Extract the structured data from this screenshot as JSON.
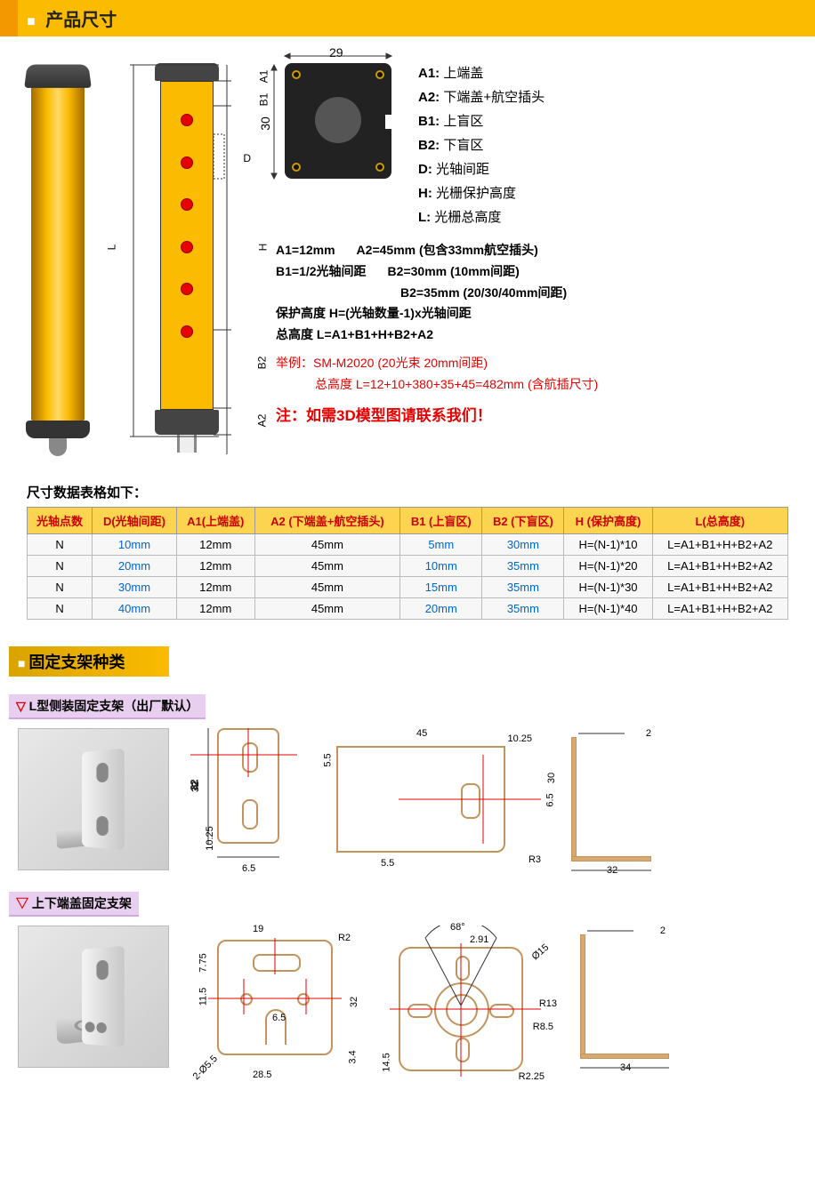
{
  "header1": "产品尺寸",
  "header2": "固定支架种类",
  "schematic_labels": {
    "A1": "A1",
    "B1": "B1",
    "D": "D",
    "H": "H",
    "B2": "B2",
    "A2": "A2",
    "L": "L"
  },
  "topview": {
    "width": "29",
    "height": "30"
  },
  "definitions": [
    {
      "k": "A1:",
      "v": "上端盖"
    },
    {
      "k": "A2:",
      "v": "下端盖+航空插头"
    },
    {
      "k": "B1:",
      "v": "上盲区"
    },
    {
      "k": "B2:",
      "v": "下盲区"
    },
    {
      "k": "D:",
      "v": "光轴间距"
    },
    {
      "k": "H:",
      "v": "光栅保护高度"
    },
    {
      "k": "L:",
      "v": "光栅总高度"
    }
  ],
  "spec_lines": {
    "a1": "A1=12mm",
    "a2": "A2=45mm (包含33mm航空插头)",
    "b1": "B1=1/2光轴间距",
    "b2a": "B2=30mm  (10mm间距)",
    "b2b": "B2=35mm  (20/30/40mm间距)",
    "h": "保护高度 H=(光轴数量-1)x光轴间距",
    "l": "总高度 L=A1+B1+H+B2+A2"
  },
  "example": {
    "l1": "举例：SM-M2020 (20光束  20mm间距)",
    "l2": "总高度 L=12+10+380+35+45=482mm (含航插尺寸)"
  },
  "note": "注：如需3D模型图请联系我们！",
  "table_title": "尺寸数据表格如下：",
  "table": {
    "headers": [
      "光轴点数",
      "D(光轴间距)",
      "A1(上端盖)",
      "A2 (下端盖+航空插头)",
      "B1 (上盲区)",
      "B2 (下盲区)",
      "H (保护高度)",
      "L(总高度)"
    ],
    "rows": [
      [
        "N",
        "10mm",
        "12mm",
        "45mm",
        "5mm",
        "30mm",
        "H=(N-1)*10",
        "L=A1+B1+H+B2+A2"
      ],
      [
        "N",
        "20mm",
        "12mm",
        "45mm",
        "10mm",
        "35mm",
        "H=(N-1)*20",
        "L=A1+B1+H+B2+A2"
      ],
      [
        "N",
        "30mm",
        "12mm",
        "45mm",
        "15mm",
        "35mm",
        "H=(N-1)*30",
        "L=A1+B1+H+B2+A2"
      ],
      [
        "N",
        "40mm",
        "12mm",
        "45mm",
        "20mm",
        "35mm",
        "H=(N-1)*40",
        "L=A1+B1+H+B2+A2"
      ]
    ],
    "blue_cols": [
      1,
      4,
      5
    ]
  },
  "bracket1_label": "L型侧装固定支架（出厂默认）",
  "bracket2_label": "上下端盖固定支架",
  "bracket1_dims": {
    "front": {
      "h": "32",
      "slot_h": "10.25",
      "slot_w": "6.5",
      "slot_r": "5.5"
    },
    "top": {
      "w": "45",
      "h": "30",
      "slot_off": "10.25",
      "slot_w": "6.5",
      "slot_r": "5.5",
      "corner_r": "R3"
    },
    "side": {
      "t": "2",
      "base": "32"
    }
  },
  "bracket2_dims": {
    "front": {
      "slot_w": "19",
      "h": "32",
      "r": "R2",
      "d": "2-Ø5.5",
      "sp1": "7.75",
      "sp2": "11.5",
      "sw": "6.5",
      "bh": "3.4",
      "bw": "28.5"
    },
    "top": {
      "ang": "68°",
      "off": "2.91",
      "od": "Ø15",
      "r1": "R13",
      "r2": "R8.5",
      "r3": "R2.25",
      "h": "14.5"
    },
    "side": {
      "t": "2",
      "base": "34"
    }
  },
  "colors": {
    "brand": "#fbbb00",
    "brand_dark": "#f39800",
    "line": "#c3935d",
    "red": "#e60000",
    "blue": "#0066cc"
  }
}
